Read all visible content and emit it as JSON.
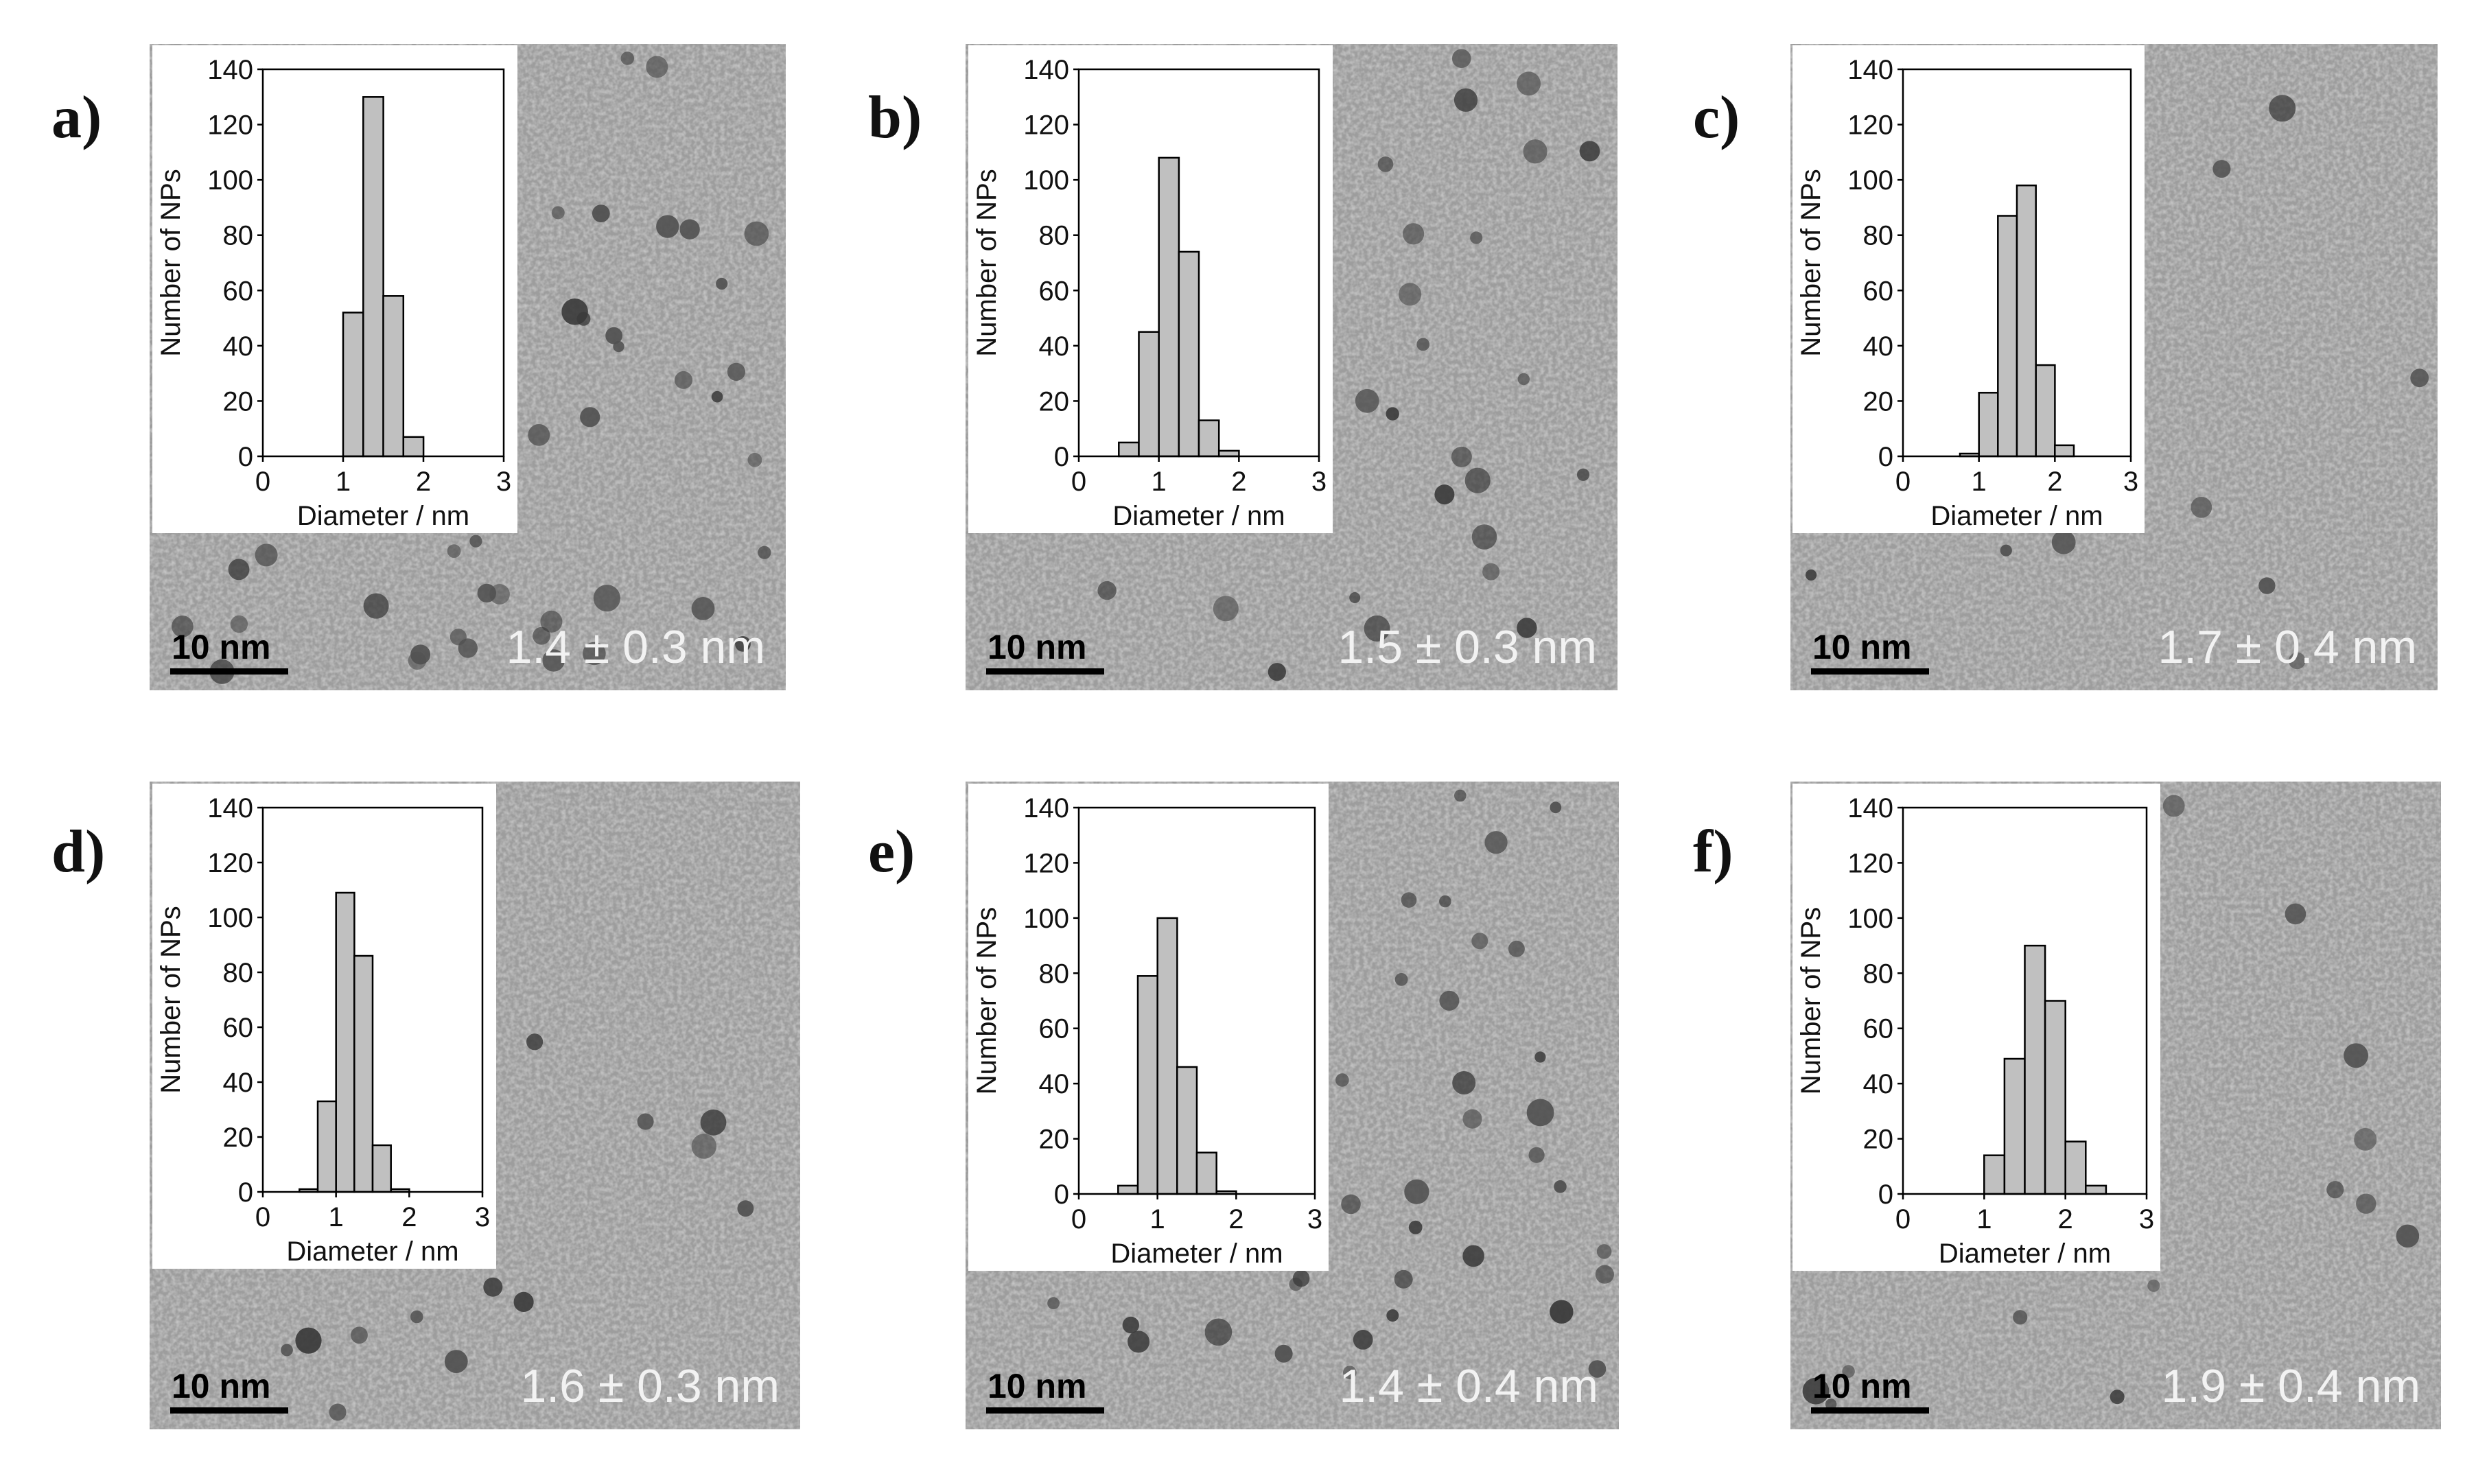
{
  "chart_data": [
    {
      "type": "bar",
      "panel_label": "a)",
      "scale_bar_label": "10 nm",
      "size_label": "1.4 ± 0.3 nm",
      "bin_centers": [
        0.375,
        0.625,
        0.875,
        1.125,
        1.375,
        1.625,
        1.875,
        2.125,
        2.375,
        2.625,
        2.875
      ],
      "values": [
        0,
        0,
        0,
        52,
        130,
        58,
        7,
        0,
        0,
        0,
        0
      ],
      "xlabel": "Diameter / nm",
      "ylabel": "Number of NPs",
      "xlim": [
        0,
        3
      ],
      "ylim": [
        0,
        140
      ],
      "xticks": [
        "0",
        "1",
        "2",
        "3"
      ],
      "yticks": [
        "0",
        "20",
        "40",
        "60",
        "80",
        "100",
        "120",
        "140"
      ],
      "grid": false
    },
    {
      "type": "bar",
      "panel_label": "b)",
      "scale_bar_label": "10 nm",
      "size_label": "1.5 ± 0.3 nm",
      "bin_centers": [
        0.625,
        0.875,
        1.125,
        1.375,
        1.625,
        1.875,
        2.125,
        2.375,
        2.625
      ],
      "values": [
        5,
        45,
        108,
        74,
        13,
        2,
        0,
        0,
        0
      ],
      "xlabel": "Diameter / nm",
      "ylabel": "Number of NPs",
      "xlim": [
        0,
        3
      ],
      "ylim": [
        0,
        140
      ],
      "xticks": [
        "0",
        "1",
        "2",
        "3"
      ],
      "yticks": [
        "0",
        "20",
        "40",
        "60",
        "80",
        "100",
        "120",
        "140"
      ],
      "grid": false
    },
    {
      "type": "bar",
      "panel_label": "c)",
      "scale_bar_label": "10 nm",
      "size_label": "1.7 ± 0.4 nm",
      "bin_centers": [
        0.625,
        0.875,
        1.125,
        1.375,
        1.625,
        1.875,
        2.125,
        2.375,
        2.625
      ],
      "values": [
        0,
        1,
        23,
        87,
        98,
        33,
        4,
        0,
        0
      ],
      "xlabel": "Diameter / nm",
      "ylabel": "Number of NPs",
      "xlim": [
        0,
        3
      ],
      "ylim": [
        0,
        140
      ],
      "xticks": [
        "0",
        "1",
        "2",
        "3"
      ],
      "yticks": [
        "0",
        "20",
        "40",
        "60",
        "80",
        "100",
        "120",
        "140"
      ],
      "grid": false
    },
    {
      "type": "bar",
      "panel_label": "d)",
      "scale_bar_label": "10 nm",
      "size_label": "1.6 ± 0.3 nm",
      "bin_centers": [
        0.625,
        0.875,
        1.125,
        1.375,
        1.625,
        1.875,
        2.125,
        2.375,
        2.625
      ],
      "values": [
        1,
        33,
        109,
        86,
        17,
        1,
        0,
        0,
        0
      ],
      "xlabel": "Diameter / nm",
      "ylabel": "Number of NPs",
      "xlim": [
        0,
        3
      ],
      "ylim": [
        0,
        140
      ],
      "xticks": [
        "0",
        "1",
        "2",
        "3"
      ],
      "yticks": [
        "0",
        "20",
        "40",
        "60",
        "80",
        "100",
        "120",
        "140"
      ],
      "grid": false
    },
    {
      "type": "bar",
      "panel_label": "e)",
      "scale_bar_label": "10 nm",
      "size_label": "1.4 ± 0.4 nm",
      "bin_centers": [
        0.375,
        0.625,
        0.875,
        1.125,
        1.375,
        1.625,
        1.875,
        2.125,
        2.375,
        2.625
      ],
      "values": [
        0,
        3,
        79,
        100,
        46,
        15,
        1,
        0,
        0,
        0
      ],
      "xlabel": "Diameter / nm",
      "ylabel": "Number of NPs",
      "xlim": [
        0,
        3
      ],
      "ylim": [
        0,
        140
      ],
      "xticks": [
        "0",
        "1",
        "2",
        "3"
      ],
      "yticks": [
        "0",
        "20",
        "40",
        "60",
        "80",
        "100",
        "120",
        "140"
      ],
      "grid": false
    },
    {
      "type": "bar",
      "panel_label": "f)",
      "scale_bar_label": "10 nm",
      "size_label": "1.9 ± 0.4 nm",
      "bin_centers": [
        0.875,
        1.125,
        1.375,
        1.625,
        1.875,
        2.125,
        2.375,
        2.625,
        2.875
      ],
      "values": [
        0,
        14,
        49,
        90,
        70,
        19,
        3,
        0,
        0
      ],
      "xlabel": "Diameter / nm",
      "ylabel": "Number of NPs",
      "xlim": [
        0,
        3
      ],
      "ylim": [
        0,
        140
      ],
      "xticks": [
        "0",
        "1",
        "2",
        "3"
      ],
      "yticks": [
        "0",
        "20",
        "40",
        "60",
        "80",
        "100",
        "120",
        "140"
      ],
      "grid": false
    }
  ]
}
